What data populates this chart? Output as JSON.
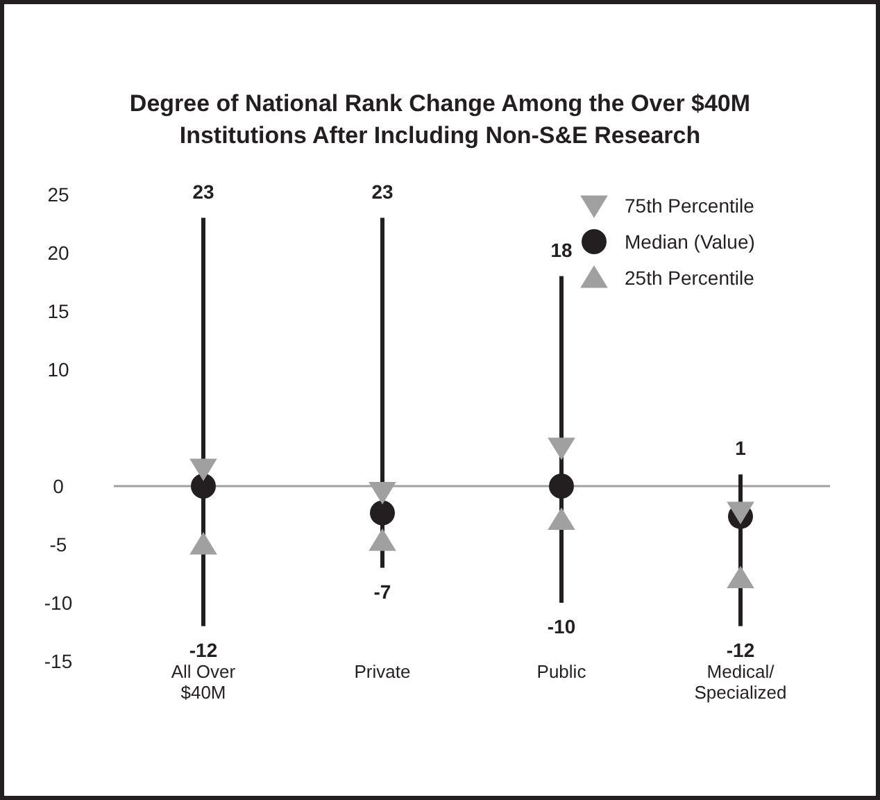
{
  "chart_data": {
    "type": "scatter",
    "title": "Degree of National Rank Change Among the Over $40M Institutions After Including Non-S&E Research",
    "categories": [
      "All Over $40M",
      "Private",
      "Public",
      "Medical/Specialized"
    ],
    "series": [
      {
        "type": "bar",
        "color": "#231f20",
        "base": [
          -12,
          -7,
          -10,
          -12
        ],
        "values": [
          35,
          30,
          28,
          13
        ]
      },
      {
        "name": "75th Percentile",
        "color": "#a0a0a0",
        "marker": "triangle-down",
        "values": [
          1.5,
          -0.5,
          3.3,
          -2.2
        ]
      },
      {
        "name": "Median (Value)",
        "color": "#231f20",
        "marker": "circle",
        "values": [
          0,
          -2.3,
          0,
          -2.6
        ]
      },
      {
        "name": "25th Percentile",
        "color": "#a0a0a0",
        "marker": "triangle",
        "values": [
          -5,
          -4.7,
          -2.9,
          -7.9
        ]
      }
    ],
    "annotations": [
      {
        "text": "23",
        "x": "All Over $40M",
        "y": 23
      },
      {
        "text": "-12",
        "x": "All Over $40M",
        "y": -12
      },
      {
        "text": "23",
        "x": "Private",
        "y": 23
      },
      {
        "text": "-7",
        "x": "Private",
        "y": -7
      },
      {
        "text": "18",
        "x": "Public",
        "y": 18
      },
      {
        "text": "-10",
        "x": "Public",
        "y": -10
      },
      {
        "text": "1",
        "x": "Medical/Specialized",
        "y": 1
      },
      {
        "text": "-12",
        "x": "Medical/Specialized",
        "y": -12
      }
    ],
    "ylim": [
      -15,
      25
    ],
    "yticks": [
      -15,
      -10,
      -5,
      0,
      10,
      15,
      20,
      25
    ],
    "ref_lines": [
      {
        "axis": "y",
        "value": 0,
        "color": "#a0a0a0"
      }
    ],
    "grid": false,
    "legend": "top right"
  }
}
